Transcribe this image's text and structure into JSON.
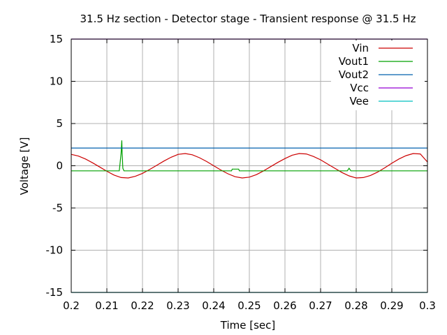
{
  "chart_data": {
    "type": "line",
    "title": "31.5 Hz section - Detector stage - Transient response @ 31.5 Hz",
    "xlabel": "Time [sec]",
    "ylabel": "Voltage [V]",
    "xlim": [
      0.2,
      0.3
    ],
    "ylim": [
      -15,
      15
    ],
    "xticks": [
      0.2,
      0.21,
      0.22,
      0.23,
      0.24,
      0.25,
      0.26,
      0.27,
      0.28,
      0.29,
      0.3
    ],
    "xtick_labels": [
      "0.2",
      "0.21",
      "0.22",
      "0.23",
      "0.24",
      "0.25",
      "0.26",
      "0.27",
      "0.28",
      "0.29",
      "0.3"
    ],
    "yticks": [
      15,
      10,
      5,
      0,
      -5,
      -10,
      -15
    ],
    "ytick_labels": [
      "15",
      "10",
      "5",
      "0",
      "-5",
      "-10",
      "-15"
    ],
    "grid": true,
    "legend_position": "top-right",
    "series": [
      {
        "name": "Vin",
        "color": "#cc0000",
        "x": [
          0.2,
          0.202,
          0.204,
          0.206,
          0.208,
          0.21,
          0.212,
          0.214,
          0.216,
          0.218,
          0.22,
          0.222,
          0.224,
          0.226,
          0.228,
          0.23,
          0.232,
          0.234,
          0.236,
          0.238,
          0.24,
          0.242,
          0.244,
          0.246,
          0.248,
          0.25,
          0.252,
          0.254,
          0.256,
          0.258,
          0.26,
          0.262,
          0.264,
          0.266,
          0.268,
          0.27,
          0.272,
          0.274,
          0.276,
          0.278,
          0.28,
          0.282,
          0.284,
          0.286,
          0.288,
          0.29,
          0.292,
          0.294,
          0.296,
          0.298,
          0.3
        ],
        "y": [
          1.35,
          1.15,
          0.8,
          0.35,
          -0.15,
          -0.65,
          -1.1,
          -1.4,
          -1.45,
          -1.25,
          -0.9,
          -0.45,
          0.05,
          0.55,
          1.0,
          1.35,
          1.45,
          1.3,
          0.95,
          0.5,
          0.0,
          -0.5,
          -0.95,
          -1.3,
          -1.45,
          -1.35,
          -1.05,
          -0.6,
          -0.1,
          0.4,
          0.85,
          1.25,
          1.45,
          1.4,
          1.1,
          0.7,
          0.2,
          -0.3,
          -0.8,
          -1.2,
          -1.45,
          -1.4,
          -1.15,
          -0.75,
          -0.25,
          0.3,
          0.8,
          1.2,
          1.45,
          1.4,
          0.45
        ]
      },
      {
        "name": "Vout1",
        "color": "#00a000",
        "x": [
          0.2,
          0.2135,
          0.214,
          0.2142,
          0.2143,
          0.2145,
          0.2148,
          0.216,
          0.245,
          0.2452,
          0.247,
          0.2472,
          0.2775,
          0.278,
          0.2785,
          0.3
        ],
        "y": [
          -0.6,
          -0.6,
          1.5,
          3.0,
          1.5,
          -0.3,
          -0.6,
          -0.6,
          -0.6,
          -0.4,
          -0.4,
          -0.6,
          -0.6,
          -0.3,
          -0.6,
          -0.6
        ]
      },
      {
        "name": "Vout2",
        "color": "#0060ad",
        "x": [
          0.2,
          0.3
        ],
        "y": [
          2.1,
          2.1
        ]
      },
      {
        "name": "Vcc",
        "color": "#9400d3",
        "x": [
          0.2,
          0.3
        ],
        "y": [
          15,
          15
        ]
      },
      {
        "name": "Vee",
        "color": "#00bfbf",
        "x": [
          0.2,
          0.3
        ],
        "y": [
          -15,
          -15
        ]
      }
    ]
  }
}
